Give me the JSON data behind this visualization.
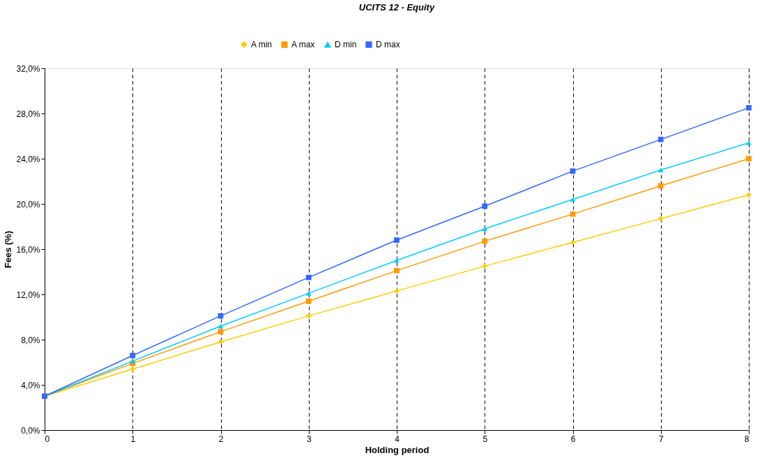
{
  "chart_data": {
    "type": "line",
    "title": "UCITS 12 - Equity",
    "xlabel": "Holding period",
    "ylabel": "Fees  (%)",
    "x": [
      0,
      1,
      2,
      3,
      4,
      5,
      6,
      7,
      8
    ],
    "series": [
      {
        "name": "A min",
        "color": "#ffcc00",
        "marker": "diamond",
        "values": [
          3.0,
          5.4,
          7.8,
          10.1,
          12.3,
          14.5,
          16.6,
          18.7,
          20.8
        ]
      },
      {
        "name": "A max",
        "color": "#ff9900",
        "marker": "square",
        "values": [
          3.0,
          5.9,
          8.7,
          11.4,
          14.1,
          16.7,
          19.1,
          21.6,
          24.0
        ]
      },
      {
        "name": "D min",
        "color": "#00ccff",
        "marker": "triangle",
        "values": [
          3.0,
          6.1,
          9.2,
          12.1,
          15.0,
          17.8,
          20.4,
          23.0,
          25.4
        ]
      },
      {
        "name": "D max",
        "color": "#3366ff",
        "marker": "square",
        "values": [
          3.0,
          6.6,
          10.1,
          13.5,
          16.8,
          19.8,
          22.9,
          25.7,
          28.5
        ]
      }
    ],
    "xlim": [
      0,
      8
    ],
    "xticks": [
      0,
      1,
      2,
      3,
      4,
      5,
      6,
      7,
      8
    ],
    "ylim": [
      0,
      32
    ],
    "yticks": [
      {
        "value": 0,
        "label": "0,0%"
      },
      {
        "value": 4,
        "label": "4,0%"
      },
      {
        "value": 8,
        "label": "8,0%"
      },
      {
        "value": 12,
        "label": "12,0%"
      },
      {
        "value": 16,
        "label": "16,0%"
      },
      {
        "value": 20,
        "label": "20,0%"
      },
      {
        "value": 24,
        "label": "24,0%"
      },
      {
        "value": 28,
        "label": "28,0%"
      },
      {
        "value": 32,
        "label": "32,0%"
      }
    ],
    "grid": "x",
    "legend": "top",
    "line_style": "solid"
  }
}
